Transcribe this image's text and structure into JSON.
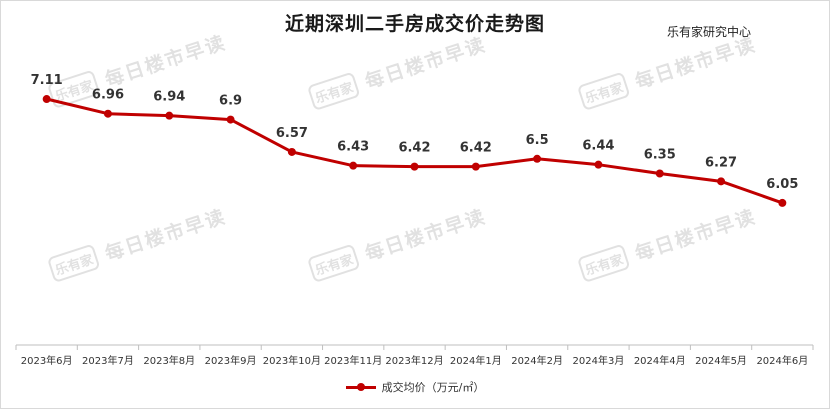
{
  "chart_data": {
    "type": "line",
    "title": "近期深圳二手房成交价走势图",
    "source": "乐有家研究中心",
    "watermark": {
      "logo": "乐有家",
      "text": "每日楼市早读"
    },
    "categories": [
      "2023年6月",
      "2023年7月",
      "2023年8月",
      "2023年9月",
      "2023年10月",
      "2023年11月",
      "2023年12月",
      "2024年1月",
      "2024年2月",
      "2024年3月",
      "2024年4月",
      "2024年5月",
      "2024年6月"
    ],
    "series": [
      {
        "name": "成交均价（万元/㎡）",
        "color": "#c00000",
        "values": [
          7.11,
          6.96,
          6.94,
          6.9,
          6.57,
          6.43,
          6.42,
          6.42,
          6.5,
          6.44,
          6.35,
          6.27,
          6.05
        ],
        "labels": [
          "7.11",
          "6.96",
          "6.94",
          "6.9",
          "6.57",
          "6.43",
          "6.42",
          "6.42",
          "6.5",
          "6.44",
          "6.35",
          "6.27",
          "6.05"
        ]
      }
    ],
    "ylim": [
      4.6,
      7.6
    ],
    "grid": false,
    "legend_position": "bottom"
  }
}
